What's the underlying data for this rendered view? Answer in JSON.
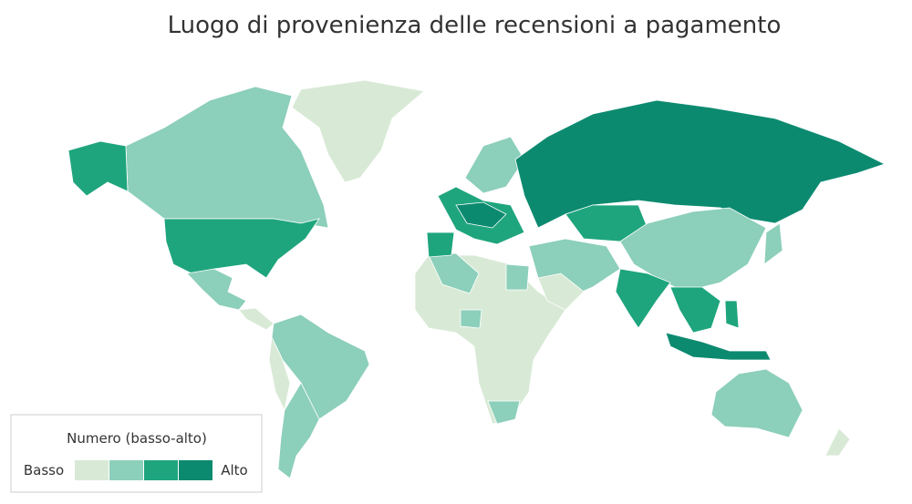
{
  "title": "Luogo di provenienza delle recensioni a pagamento",
  "legend": {
    "title": "Numero (basso-alto)",
    "low": "Basso",
    "high": "Alto",
    "colors": [
      "#d8ead6",
      "#8ccfba",
      "#1fa57e",
      "#0c8a70"
    ]
  }
}
